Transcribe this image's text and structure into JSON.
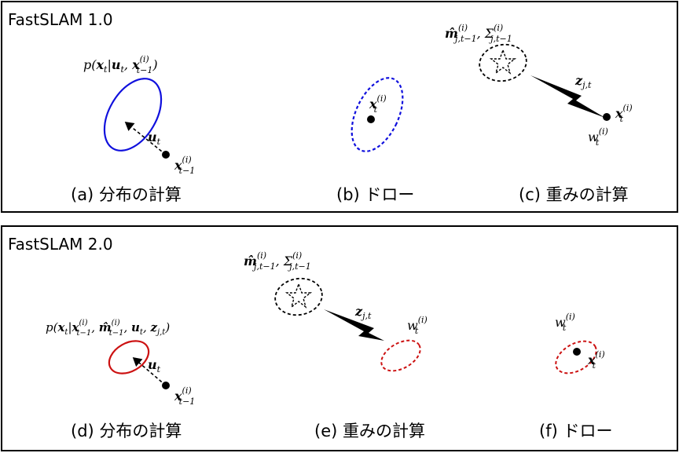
{
  "panels": [
    {
      "title": "FastSLAM 1.0",
      "captions": [
        "(a) 分布の計算",
        "(b) ドロー",
        "(c) 重みの計算"
      ]
    },
    {
      "title": "FastSLAM 2.0",
      "captions": [
        "(d) 分布の計算",
        "(e) 重みの計算",
        "(f) ドロー"
      ]
    }
  ],
  "labels": {
    "dist1": "p(x_t|u_t, x_{t-1}^{(i)})",
    "dist2": "p(x_t|x_{t-1}^{(i)}, m_{t-1}^{(i)}, u_t, z_{j,t})",
    "u_t": "u",
    "u_sub": "t",
    "x": "x",
    "x_prev_sub": "t−1",
    "x_t_sub": "t",
    "sup_i": "(i)",
    "w": "w",
    "w_sub": "t",
    "z": "z",
    "z_sub": "j,t",
    "m_hat": "m̂",
    "m_sub": "j,t−1",
    "sigma": "Σ",
    "sigma_sub": "j,t−1",
    "comma": ","
  },
  "colors": {
    "blue": "#1010dd",
    "red": "#cc1111",
    "black": "#000000"
  }
}
